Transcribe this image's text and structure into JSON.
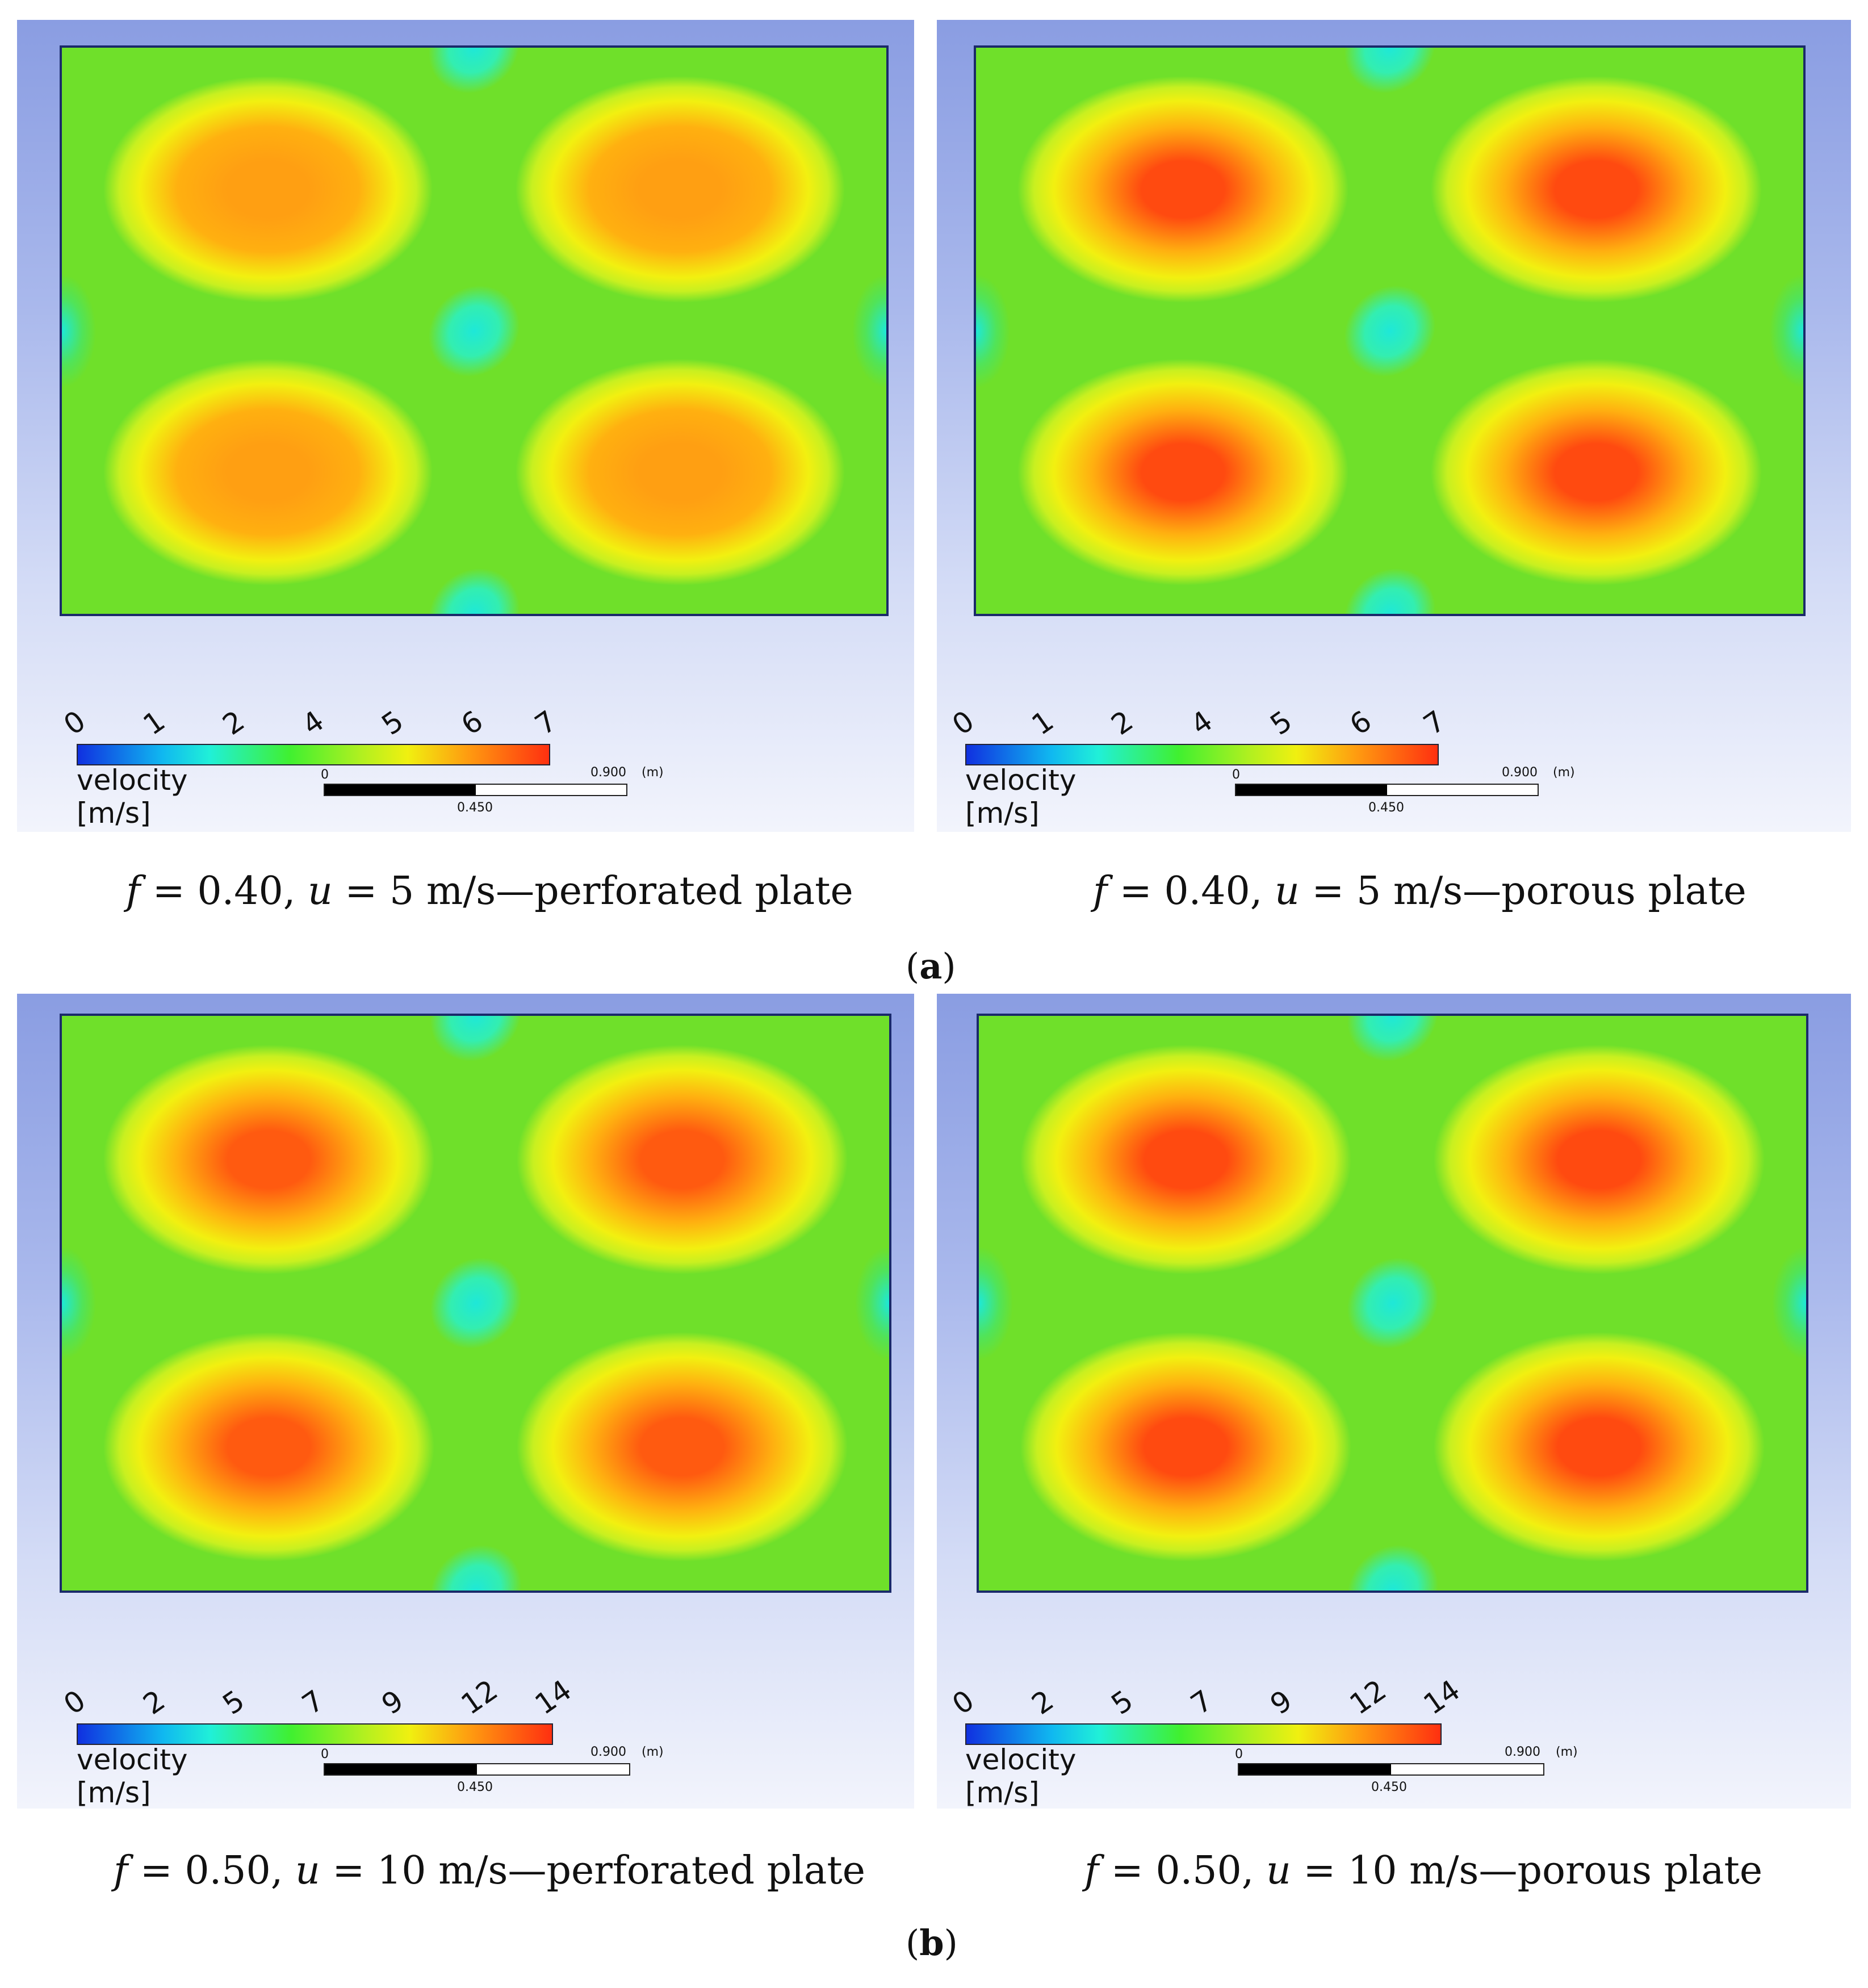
{
  "panels": [
    {
      "id": "a-left",
      "legend": {
        "ticks": [
          "0",
          "1",
          "2",
          "4",
          "5",
          "6",
          "7"
        ],
        "label": "velocity [m/s]",
        "scale_zero": "0",
        "scale_end": "0.900",
        "scale_unit": "(m)",
        "scale_mid": "0.450"
      },
      "caption": {
        "f": "f",
        "f_eq": " = 0.40, ",
        "u": "u",
        "rest": " = 5 m/s—perforated plate"
      },
      "peak_color": "#ff9f12"
    },
    {
      "id": "a-right",
      "legend": {
        "ticks": [
          "0",
          "1",
          "2",
          "4",
          "5",
          "6",
          "7"
        ],
        "label": "velocity [m/s]",
        "scale_zero": "0",
        "scale_end": "0.900",
        "scale_unit": "(m)",
        "scale_mid": "0.450"
      },
      "caption": {
        "f": "f",
        "f_eq": " = 0.40, ",
        "u": "u",
        "rest": " = 5 m/s—porous plate"
      },
      "peak_color": "#ff4a10"
    },
    {
      "id": "b-left",
      "legend": {
        "ticks": [
          "0",
          "2",
          "5",
          "7",
          "9",
          "12",
          "14"
        ],
        "label": "velocity [m/s]",
        "scale_zero": "0",
        "scale_end": "0.900",
        "scale_unit": "(m)",
        "scale_mid": "0.450"
      },
      "caption": {
        "f": "f",
        "f_eq": " = 0.50, ",
        "u": "u",
        "rest": " = 10 m/s—perforated plate"
      },
      "peak_color": "#ff5a10"
    },
    {
      "id": "b-right",
      "legend": {
        "ticks": [
          "0",
          "2",
          "5",
          "7",
          "9",
          "12",
          "14"
        ],
        "label": "velocity [m/s]",
        "scale_zero": "0",
        "scale_end": "0.900",
        "scale_unit": "(m)",
        "scale_mid": "0.450"
      },
      "caption": {
        "f": "f",
        "f_eq": " = 0.50, ",
        "u": "u",
        "rest": " = 10 m/s—porous plate"
      },
      "peak_color": "#ff4a10"
    }
  ],
  "sublabels": {
    "a": "a",
    "b": "b"
  }
}
